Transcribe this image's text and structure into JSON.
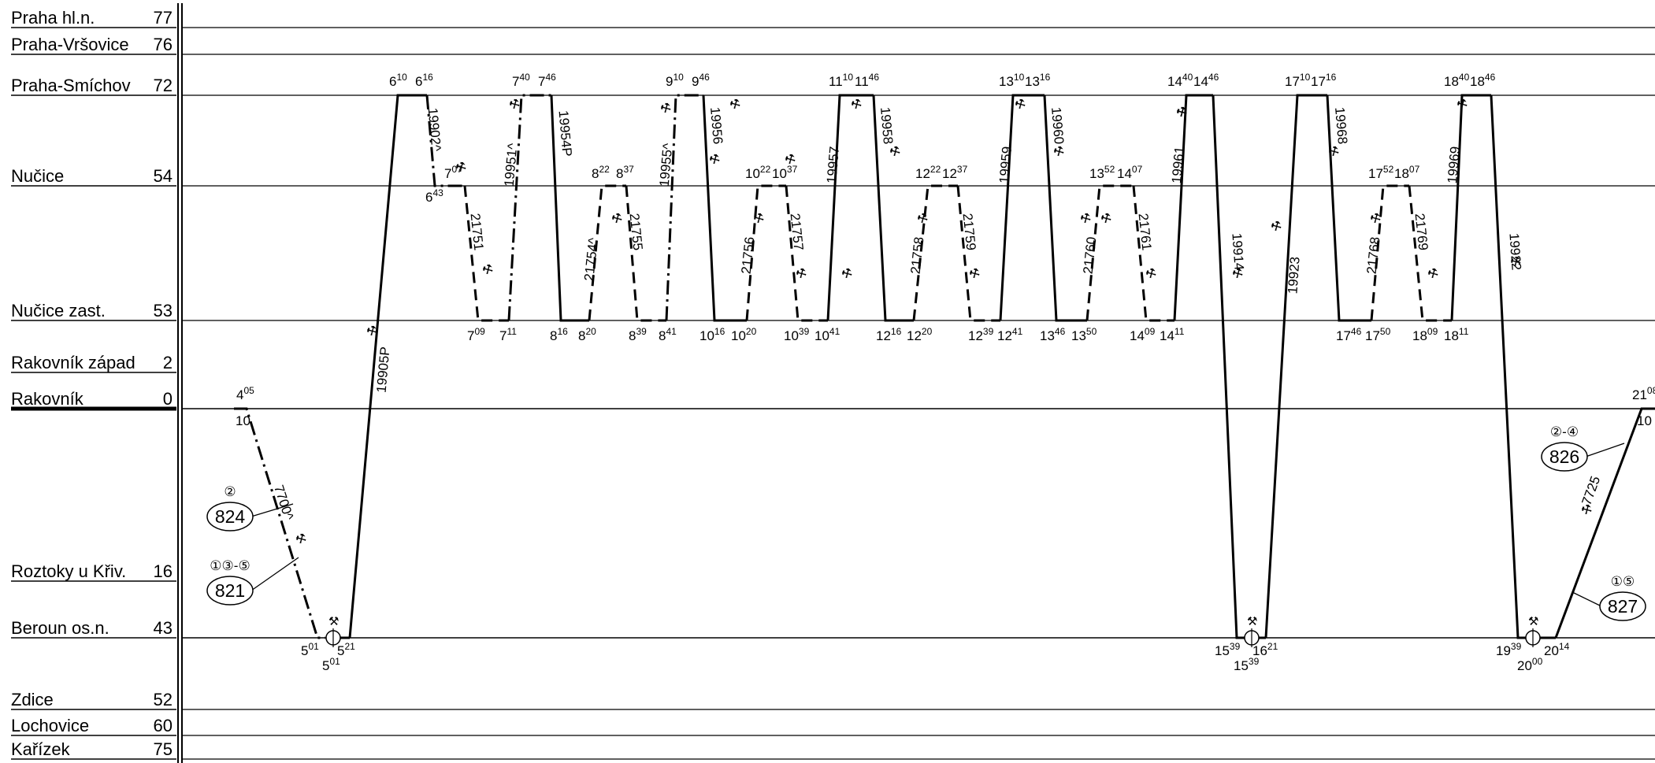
{
  "stations": [
    {
      "name": "Praha hl.n.",
      "km": "77"
    },
    {
      "name": "Praha-Vršovice",
      "km": "76"
    },
    {
      "name": "Praha-Smíchov",
      "km": "72"
    },
    {
      "name": "Nučice",
      "km": "54"
    },
    {
      "name": "Nučice zast.",
      "km": "53"
    },
    {
      "name": "Rakovník západ",
      "km": "2"
    },
    {
      "name": "Rakovník",
      "km": "0"
    },
    {
      "name": "Roztoky u Křiv.",
      "km": "16"
    },
    {
      "name": "Beroun os.n.",
      "km": "43"
    },
    {
      "name": "Zdice",
      "km": "52"
    },
    {
      "name": "Lochovice",
      "km": "60"
    },
    {
      "name": "Kařízek",
      "km": "75"
    }
  ],
  "trains": [
    "19902^",
    "19951^",
    "19954P",
    "19955^",
    "19956",
    "19957",
    "19958",
    "19959",
    "19960",
    "19961",
    "19968",
    "19969",
    "19914",
    "19923",
    "19922",
    "19905P",
    "21751",
    "21754^",
    "21755",
    "21756",
    "21757",
    "21758",
    "21759",
    "21760",
    "21761",
    "21768",
    "21769",
    "7700^",
    "7725"
  ],
  "times": [
    "6 10",
    "6 16",
    "7 40",
    "7 46",
    "9 10",
    "9 46",
    "11 10",
    "11 46",
    "13 10",
    "13 16",
    "14 40",
    "14 46",
    "17 10",
    "17 16",
    "18 40",
    "18 46",
    "6 43",
    "7 07",
    "8 22",
    "8 37",
    "10 22",
    "10 37",
    "12 22",
    "12 37",
    "13 52",
    "14 07",
    "17 52",
    "18 07",
    "7 09",
    "7 11",
    "8 16",
    "8 20",
    "8 39",
    "8 41",
    "10 16",
    "10 20",
    "10 39",
    "10 41",
    "12 16",
    "12 20",
    "12 39",
    "12 41",
    "13 46",
    "13 50",
    "14 09",
    "14 11",
    "17 46",
    "17 50",
    "18 09",
    "18 11",
    "4 05",
    "10",
    "21 08",
    "10",
    "5 01",
    "5 21",
    "5 01",
    "15 39",
    "16 21",
    "15 39",
    "19 39",
    "20 14",
    "20 00"
  ],
  "ovals": [
    {
      "number": "824",
      "days": "②"
    },
    {
      "number": "821",
      "days": "①③-⑤"
    },
    {
      "number": "826",
      "days": "②-④"
    },
    {
      "number": "827",
      "days": "①⑤"
    }
  ]
}
